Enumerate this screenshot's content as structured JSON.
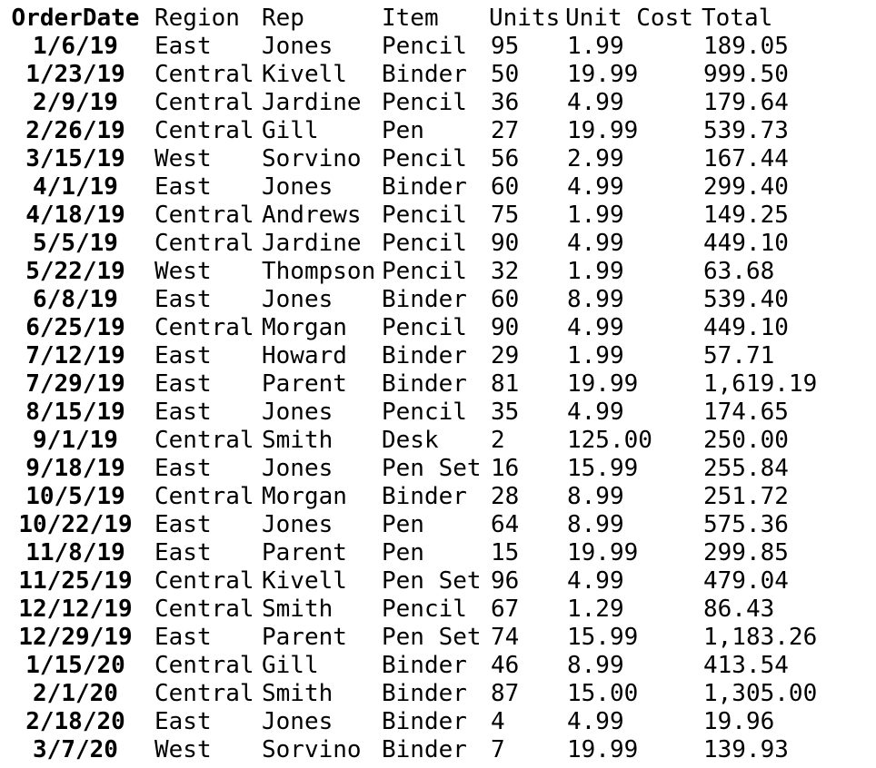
{
  "columns": [
    "OrderDate",
    "Region",
    "Rep",
    "Item",
    "Units",
    "Unit Cost",
    "Total"
  ],
  "rows": [
    [
      "1/6/19",
      "East",
      "Jones",
      "Pencil",
      "95",
      "1.99",
      "189.05"
    ],
    [
      "1/23/19",
      "Central",
      "Kivell",
      "Binder",
      "50",
      "19.99",
      "999.50"
    ],
    [
      "2/9/19",
      "Central",
      "Jardine",
      "Pencil",
      "36",
      "4.99",
      "179.64"
    ],
    [
      "2/26/19",
      "Central",
      "Gill",
      "Pen",
      "27",
      "19.99",
      "539.73"
    ],
    [
      "3/15/19",
      "West",
      "Sorvino",
      "Pencil",
      "56",
      "2.99",
      "167.44"
    ],
    [
      "4/1/19",
      "East",
      "Jones",
      "Binder",
      "60",
      "4.99",
      "299.40"
    ],
    [
      "4/18/19",
      "Central",
      "Andrews",
      "Pencil",
      "75",
      "1.99",
      "149.25"
    ],
    [
      "5/5/19",
      "Central",
      "Jardine",
      "Pencil",
      "90",
      "4.99",
      "449.10"
    ],
    [
      "5/22/19",
      "West",
      "Thompson",
      "Pencil",
      "32",
      "1.99",
      "63.68"
    ],
    [
      "6/8/19",
      "East",
      "Jones",
      "Binder",
      "60",
      "8.99",
      "539.40"
    ],
    [
      "6/25/19",
      "Central",
      "Morgan",
      "Pencil",
      "90",
      "4.99",
      "449.10"
    ],
    [
      "7/12/19",
      "East",
      "Howard",
      "Binder",
      "29",
      "1.99",
      "57.71"
    ],
    [
      "7/29/19",
      "East",
      "Parent",
      "Binder",
      "81",
      "19.99",
      "1,619.19"
    ],
    [
      "8/15/19",
      "East",
      "Jones",
      "Pencil",
      "35",
      "4.99",
      "174.65"
    ],
    [
      "9/1/19",
      "Central",
      "Smith",
      "Desk",
      "2",
      "125.00",
      "250.00"
    ],
    [
      "9/18/19",
      "East",
      "Jones",
      "Pen Set",
      "16",
      "15.99",
      "255.84"
    ],
    [
      "10/5/19",
      "Central",
      "Morgan",
      "Binder",
      "28",
      "8.99",
      "251.72"
    ],
    [
      "10/22/19",
      "East",
      "Jones",
      "Pen",
      "64",
      "8.99",
      "575.36"
    ],
    [
      "11/8/19",
      "East",
      "Parent",
      "Pen",
      "15",
      "19.99",
      "299.85"
    ],
    [
      "11/25/19",
      "Central",
      "Kivell",
      "Pen Set",
      "96",
      "4.99",
      "479.04"
    ],
    [
      "12/12/19",
      "Central",
      "Smith",
      "Pencil",
      "67",
      "1.29",
      "86.43"
    ],
    [
      "12/29/19",
      "East",
      "Parent",
      "Pen Set",
      "74",
      "15.99",
      "1,183.26"
    ],
    [
      "1/15/20",
      "Central",
      "Gill",
      "Binder",
      "46",
      "8.99",
      "413.54"
    ],
    [
      "2/1/20",
      "Central",
      "Smith",
      "Binder",
      "87",
      "15.00",
      "1,305.00"
    ],
    [
      "2/18/20",
      "East",
      "Jones",
      "Binder",
      "4",
      "4.99",
      "19.96"
    ],
    [
      "3/7/20",
      "West",
      "Sorvino",
      "Binder",
      "7",
      "19.99",
      "139.93"
    ]
  ]
}
